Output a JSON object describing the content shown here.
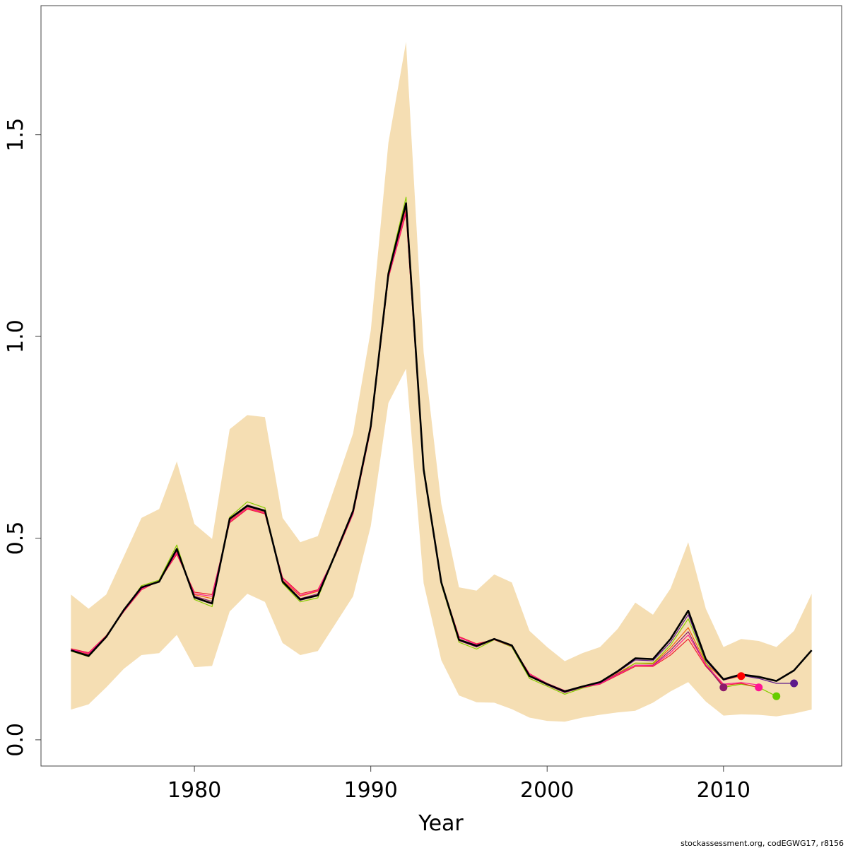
{
  "chart_data": {
    "type": "line",
    "title": "",
    "xlabel": "Year",
    "ylabel": "",
    "xlim": [
      1971.3,
      2016.7
    ],
    "ylim": [
      -0.065,
      1.82
    ],
    "xticks": [
      1980,
      1990,
      2000,
      2010
    ],
    "xtick_labels": [
      "1980",
      "1990",
      "2000",
      "2010"
    ],
    "yticks": [
      0.0,
      0.5,
      1.0,
      1.5
    ],
    "ytick_labels": [
      "0.0",
      "0.5",
      "1.0",
      "1.5"
    ],
    "grid": false,
    "legend": "none",
    "band_color": "#F5DEB3",
    "confidence_band": {
      "x": [
        1973,
        1974,
        1975,
        1976,
        1977,
        1978,
        1979,
        1980,
        1981,
        1982,
        1983,
        1984,
        1985,
        1986,
        1987,
        1988,
        1989,
        1990,
        1991,
        1992,
        1993,
        1994,
        1995,
        1996,
        1997,
        1998,
        1999,
        2000,
        2001,
        2002,
        2003,
        2004,
        2005,
        2006,
        2007,
        2008,
        2009,
        2010,
        2011,
        2012,
        2013,
        2014,
        2015
      ],
      "lower": [
        0.075,
        0.088,
        0.13,
        0.176,
        0.21,
        0.215,
        0.26,
        0.18,
        0.183,
        0.318,
        0.362,
        0.342,
        0.24,
        0.21,
        0.22,
        0.288,
        0.356,
        0.53,
        0.835,
        0.92,
        0.388,
        0.197,
        0.11,
        0.093,
        0.092,
        0.076,
        0.055,
        0.047,
        0.045,
        0.055,
        0.062,
        0.068,
        0.072,
        0.092,
        0.12,
        0.143,
        0.095,
        0.06,
        0.063,
        0.062,
        0.058,
        0.065,
        0.075
      ],
      "upper": [
        0.36,
        0.325,
        0.36,
        0.455,
        0.55,
        0.572,
        0.69,
        0.535,
        0.498,
        0.77,
        0.805,
        0.8,
        0.55,
        0.49,
        0.505,
        0.632,
        0.76,
        1.015,
        1.48,
        1.73,
        0.96,
        0.585,
        0.378,
        0.37,
        0.41,
        0.39,
        0.27,
        0.23,
        0.195,
        0.215,
        0.23,
        0.275,
        0.34,
        0.31,
        0.375,
        0.49,
        0.325,
        0.23,
        0.25,
        0.245,
        0.23,
        0.27,
        0.362
      ]
    },
    "series": [
      {
        "color": "#000000",
        "width": 2.6,
        "x": [
          1973,
          1974,
          1975,
          1976,
          1977,
          1978,
          1979,
          1980,
          1981,
          1982,
          1983,
          1984,
          1985,
          1986,
          1987,
          1988,
          1989,
          1990,
          1991,
          1992,
          1993,
          1994,
          1995,
          1996,
          1997,
          1998,
          1999,
          2000,
          2001,
          2002,
          2003,
          2004,
          2005,
          2006,
          2007,
          2008,
          2009,
          2010,
          2011,
          2012,
          2013,
          2014,
          2015
        ],
        "y": [
          0.222,
          0.208,
          0.255,
          0.322,
          0.378,
          0.392,
          0.473,
          0.353,
          0.338,
          0.548,
          0.58,
          0.568,
          0.392,
          0.348,
          0.358,
          0.462,
          0.568,
          0.778,
          1.155,
          1.33,
          0.67,
          0.39,
          0.248,
          0.233,
          0.25,
          0.234,
          0.158,
          0.138,
          0.12,
          0.132,
          0.143,
          0.17,
          0.202,
          0.2,
          0.25,
          0.32,
          0.2,
          0.15,
          0.162,
          0.156,
          0.146,
          0.172,
          0.222
        ]
      },
      {
        "color": "#F06010",
        "width": 1.2,
        "x": [
          1973,
          1974,
          1975,
          1976,
          1977,
          1978,
          1979,
          1980,
          1981,
          1982,
          1983,
          1984,
          1985,
          1986,
          1987,
          1988,
          1989,
          1990,
          1991,
          1992,
          1993,
          1994,
          1995,
          1996,
          1997,
          1998,
          1999,
          2000,
          2001,
          2002,
          2003,
          2004,
          2005,
          2006,
          2007,
          2008,
          2009,
          2010,
          2011
        ],
        "y": [
          0.225,
          0.212,
          0.258,
          0.32,
          0.376,
          0.393,
          0.468,
          0.36,
          0.35,
          0.543,
          0.575,
          0.564,
          0.396,
          0.356,
          0.368,
          0.46,
          0.564,
          0.775,
          1.15,
          1.315,
          0.67,
          0.39,
          0.25,
          0.232,
          0.25,
          0.233,
          0.162,
          0.139,
          0.121,
          0.131,
          0.14,
          0.165,
          0.19,
          0.188,
          0.228,
          0.278,
          0.19,
          0.148,
          0.158
        ]
      },
      {
        "color": "#88CC00",
        "width": 1.2,
        "x": [
          1973,
          1974,
          1975,
          1976,
          1977,
          1978,
          1979,
          1980,
          1981,
          1982,
          1983,
          1984,
          1985,
          1986,
          1987,
          1988,
          1989,
          1990,
          1991,
          1992,
          1993,
          1994,
          1995,
          1996,
          1997,
          1998,
          1999,
          2000,
          2001,
          2002,
          2003,
          2004,
          2005,
          2006,
          2007,
          2008,
          2009,
          2010,
          2011,
          2012,
          2013
        ],
        "y": [
          0.22,
          0.206,
          0.254,
          0.32,
          0.382,
          0.396,
          0.483,
          0.348,
          0.33,
          0.552,
          0.59,
          0.575,
          0.388,
          0.342,
          0.352,
          0.46,
          0.568,
          0.782,
          1.162,
          1.345,
          0.678,
          0.385,
          0.242,
          0.225,
          0.248,
          0.23,
          0.152,
          0.133,
          0.113,
          0.128,
          0.138,
          0.162,
          0.19,
          0.19,
          0.235,
          0.3,
          0.192,
          0.13,
          0.138,
          0.13,
          0.108
        ]
      },
      {
        "color": "#EE2233",
        "width": 1.2,
        "x": [
          1973,
          1974,
          1975,
          1976,
          1977,
          1978,
          1979,
          1980,
          1981,
          1982,
          1983,
          1984,
          1985,
          1986,
          1987,
          1988,
          1989,
          1990,
          1991,
          1992,
          1993,
          1994,
          1995,
          1996,
          1997,
          1998,
          1999,
          2000,
          2001,
          2002,
          2003,
          2004,
          2005,
          2006,
          2007,
          2008,
          2009,
          2010,
          2011,
          2012
        ],
        "y": [
          0.226,
          0.216,
          0.258,
          0.318,
          0.372,
          0.394,
          0.46,
          0.366,
          0.36,
          0.538,
          0.572,
          0.56,
          0.402,
          0.362,
          0.372,
          0.458,
          0.56,
          0.77,
          1.145,
          1.305,
          0.665,
          0.39,
          0.256,
          0.238,
          0.248,
          0.232,
          0.164,
          0.14,
          0.122,
          0.13,
          0.138,
          0.16,
          0.182,
          0.182,
          0.21,
          0.25,
          0.182,
          0.135,
          0.14,
          0.13
        ]
      },
      {
        "color": "#8B1A6B",
        "width": 1.2,
        "x": [
          1973,
          1974,
          1975,
          1976,
          1977,
          1978,
          1979,
          1980,
          1981,
          1982,
          1983,
          1984,
          1985,
          1986,
          1987,
          1988,
          1989,
          1990,
          1991,
          1992,
          1993,
          1994,
          1995,
          1996,
          1997,
          1998,
          1999,
          2000,
          2001,
          2002,
          2003,
          2004,
          2005,
          2006,
          2007,
          2008,
          2009,
          2010
        ],
        "y": [
          0.222,
          0.21,
          0.256,
          0.32,
          0.376,
          0.393,
          0.47,
          0.356,
          0.343,
          0.546,
          0.578,
          0.566,
          0.394,
          0.35,
          0.362,
          0.46,
          0.566,
          0.776,
          1.152,
          1.325,
          0.672,
          0.388,
          0.246,
          0.23,
          0.249,
          0.232,
          0.158,
          0.136,
          0.117,
          0.13,
          0.14,
          0.163,
          0.185,
          0.185,
          0.222,
          0.268,
          0.185,
          0.13
        ]
      },
      {
        "color": "#5E1A8C",
        "width": 1.2,
        "x": [
          1973,
          1974,
          1975,
          1976,
          1977,
          1978,
          1979,
          1980,
          1981,
          1982,
          1983,
          1984,
          1985,
          1986,
          1987,
          1988,
          1989,
          1990,
          1991,
          1992,
          1993,
          1994,
          1995,
          1996,
          1997,
          1998,
          1999,
          2000,
          2001,
          2002,
          2003,
          2004,
          2005,
          2006,
          2007,
          2008,
          2009,
          2010,
          2011,
          2012,
          2013,
          2014
        ],
        "y": [
          0.222,
          0.208,
          0.255,
          0.321,
          0.377,
          0.392,
          0.472,
          0.352,
          0.337,
          0.549,
          0.582,
          0.569,
          0.391,
          0.346,
          0.357,
          0.461,
          0.567,
          0.779,
          1.156,
          1.332,
          0.671,
          0.389,
          0.247,
          0.232,
          0.25,
          0.233,
          0.157,
          0.137,
          0.119,
          0.131,
          0.142,
          0.168,
          0.198,
          0.196,
          0.242,
          0.31,
          0.196,
          0.148,
          0.16,
          0.152,
          0.14,
          0.14
        ]
      },
      {
        "color": "#FF1493",
        "width": 1.2,
        "x": [
          1973,
          1974,
          1975,
          1976,
          1977,
          1978,
          1979,
          1980,
          1981,
          1982,
          1983,
          1984,
          1985,
          1986,
          1987,
          1988,
          1989,
          1990,
          1991,
          1992,
          1993,
          1994,
          1995,
          1996,
          1997,
          1998,
          1999,
          2000,
          2001,
          2002,
          2003,
          2004,
          2005,
          2006,
          2007,
          2008,
          2009,
          2010,
          2011,
          2012
        ],
        "y": [
          0.224,
          0.214,
          0.257,
          0.319,
          0.374,
          0.393,
          0.464,
          0.362,
          0.356,
          0.541,
          0.574,
          0.562,
          0.4,
          0.358,
          0.37,
          0.459,
          0.562,
          0.772,
          1.148,
          1.31,
          0.668,
          0.39,
          0.254,
          0.236,
          0.249,
          0.233,
          0.163,
          0.14,
          0.122,
          0.13,
          0.139,
          0.162,
          0.185,
          0.184,
          0.216,
          0.26,
          0.186,
          0.138,
          0.142,
          0.136
        ]
      }
    ],
    "endpoints": [
      {
        "x": 2010,
        "y": 0.13,
        "color": "#8B1A6B"
      },
      {
        "x": 2011,
        "y": 0.158,
        "color": "#FF0000"
      },
      {
        "x": 2012,
        "y": 0.13,
        "color": "#FF1493"
      },
      {
        "x": 2013,
        "y": 0.108,
        "color": "#66CC00"
      },
      {
        "x": 2014,
        "y": 0.14,
        "color": "#5E1A8C"
      }
    ]
  },
  "footer": "stockassessment.org, codEGWG17, r8156"
}
